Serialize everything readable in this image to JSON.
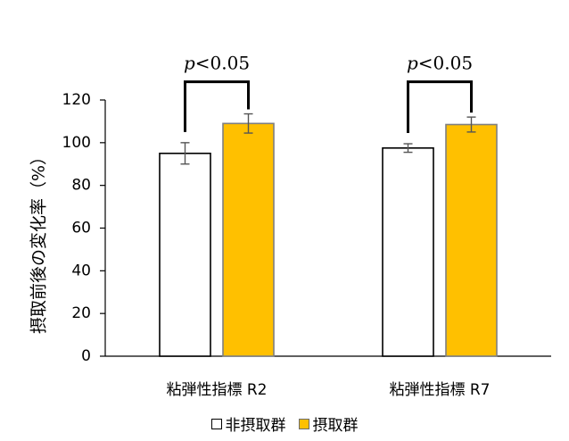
{
  "chart_data": {
    "type": "bar",
    "categories": [
      "粘弾性指標 R2",
      "粘弾性指標 R7"
    ],
    "series": [
      {
        "name": "非摂取群",
        "values": [
          95,
          97.5
        ],
        "errors": [
          5,
          2
        ],
        "color": "#ffffff",
        "stroke": "#000000"
      },
      {
        "name": "摂取群",
        "values": [
          109,
          108.5
        ],
        "errors": [
          4.5,
          3.5
        ],
        "color": "#ffc000",
        "stroke": "#7f7f7f"
      }
    ],
    "ylabel": "摂取前後の変化率（%）",
    "ylim": [
      0,
      120
    ],
    "yticks": [
      "0",
      "20",
      "40",
      "60",
      "80",
      "100",
      "120"
    ],
    "annotations": [
      {
        "category_index": 0,
        "text": "p<0.05",
        "text_italic": "p",
        "text_rest": "<0.05"
      },
      {
        "category_index": 1,
        "text": "p<0.05",
        "text_italic": "p",
        "text_rest": "<0.05"
      }
    ],
    "legend_position": "bottom",
    "grid": false
  }
}
